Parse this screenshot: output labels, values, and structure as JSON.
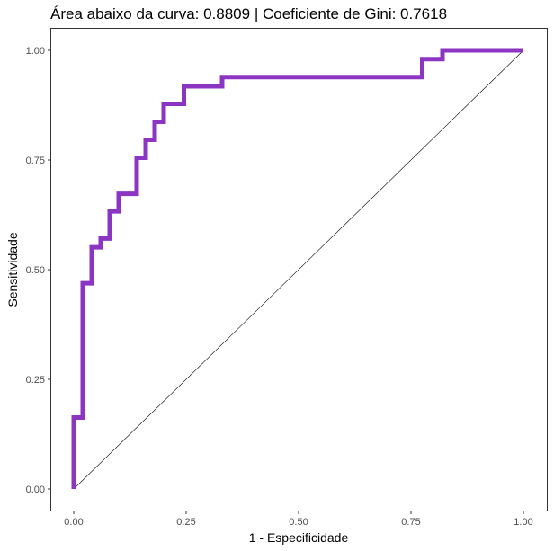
{
  "chart_data": {
    "type": "line",
    "title": "Área abaixo da curva: 0.8809 | Coeficiente de Gini: 0.7618",
    "xlabel": "1 - Especificidade",
    "ylabel": "Sensitividade",
    "xlim": [
      0,
      1
    ],
    "ylim": [
      0,
      1
    ],
    "x_ticks": [
      0,
      0.25,
      0.5,
      0.75,
      1
    ],
    "x_tick_labels": [
      "0.00",
      "0.25",
      "0.50",
      "0.75",
      "1.00"
    ],
    "y_ticks": [
      0,
      0.25,
      0.5,
      0.75,
      1
    ],
    "y_tick_labels": [
      "0.00",
      "0.25",
      "0.50",
      "0.75",
      "1.00"
    ],
    "grid": false,
    "series": [
      {
        "color": "#8B35C2",
        "x": [
          0,
          0,
          0.02,
          0.02,
          0.04,
          0.04,
          0.06,
          0.06,
          0.08,
          0.08,
          0.1,
          0.1,
          0.14,
          0.14,
          0.16,
          0.16,
          0.18,
          0.18,
          0.2,
          0.2,
          0.245,
          0.245,
          0.33,
          0.33,
          0.775,
          0.775,
          0.82,
          0.82,
          1.0
        ],
        "y": [
          0,
          0.163,
          0.163,
          0.469,
          0.469,
          0.551,
          0.551,
          0.571,
          0.571,
          0.633,
          0.633,
          0.673,
          0.673,
          0.755,
          0.755,
          0.796,
          0.796,
          0.837,
          0.837,
          0.878,
          0.878,
          0.918,
          0.918,
          0.939,
          0.939,
          0.98,
          0.98,
          1.0,
          1.0
        ]
      },
      {
        "color": "#000000",
        "x": [
          0,
          1
        ],
        "y": [
          0,
          1
        ]
      }
    ]
  }
}
